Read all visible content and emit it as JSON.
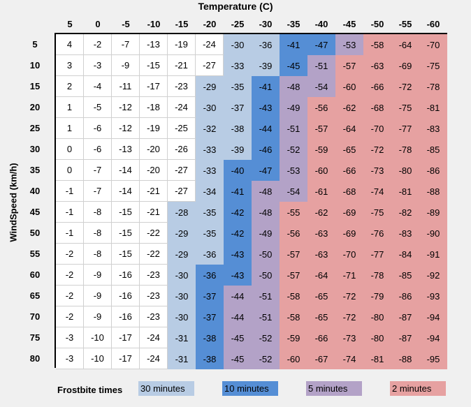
{
  "chart_data": {
    "type": "table",
    "title": "Temperature (C)",
    "ylabel": "WindSpeed (km/h)",
    "temperatures": [
      "5",
      "0",
      "-5",
      "-10",
      "-15",
      "-20",
      "-25",
      "-30",
      "-35",
      "-40",
      "-45",
      "-50",
      "-55",
      "-60"
    ],
    "wind_speeds": [
      "5",
      "10",
      "15",
      "20",
      "25",
      "30",
      "35",
      "40",
      "45",
      "50",
      "55",
      "60",
      "65",
      "70",
      "75",
      "80"
    ],
    "values": [
      [
        4,
        -2,
        -7,
        -13,
        -19,
        -24,
        -30,
        -36,
        -41,
        -47,
        -53,
        -58,
        -64,
        -70
      ],
      [
        3,
        -3,
        -9,
        -15,
        -21,
        -27,
        -33,
        -39,
        -45,
        -51,
        -57,
        -63,
        -69,
        -75
      ],
      [
        2,
        -4,
        -11,
        -17,
        -23,
        -29,
        -35,
        -41,
        -48,
        -54,
        -60,
        -66,
        -72,
        -78
      ],
      [
        1,
        -5,
        -12,
        -18,
        -24,
        -30,
        -37,
        -43,
        -49,
        -56,
        -62,
        -68,
        -75,
        -81
      ],
      [
        1,
        -6,
        -12,
        -19,
        -25,
        -32,
        -38,
        -44,
        -51,
        -57,
        -64,
        -70,
        -77,
        -83
      ],
      [
        0,
        -6,
        -13,
        -20,
        -26,
        -33,
        -39,
        -46,
        -52,
        -59,
        -65,
        -72,
        -78,
        -85
      ],
      [
        0,
        -7,
        -14,
        -20,
        -27,
        -33,
        -40,
        -47,
        -53,
        -60,
        -66,
        -73,
        -80,
        -86
      ],
      [
        -1,
        -7,
        -14,
        -21,
        -27,
        -34,
        -41,
        -48,
        -54,
        -61,
        -68,
        -74,
        -81,
        -88
      ],
      [
        -1,
        -8,
        -15,
        -21,
        -28,
        -35,
        -42,
        -48,
        -55,
        -62,
        -69,
        -75,
        -82,
        -89
      ],
      [
        -1,
        -8,
        -15,
        -22,
        -29,
        -35,
        -42,
        -49,
        -56,
        -63,
        -69,
        -76,
        -83,
        -90
      ],
      [
        -2,
        -8,
        -15,
        -22,
        -29,
        -36,
        -43,
        -50,
        -57,
        -63,
        -70,
        -77,
        -84,
        -91
      ],
      [
        -2,
        -9,
        -16,
        -23,
        -30,
        -36,
        -43,
        -50,
        -57,
        -64,
        -71,
        -78,
        -85,
        -92
      ],
      [
        -2,
        -9,
        -16,
        -23,
        -30,
        -37,
        -44,
        -51,
        -58,
        -65,
        -72,
        -79,
        -86,
        -93
      ],
      [
        -2,
        -9,
        -16,
        -23,
        -30,
        -37,
        -44,
        -51,
        -58,
        -65,
        -72,
        -80,
        -87,
        -94
      ],
      [
        -3,
        -10,
        -17,
        -24,
        -31,
        -38,
        -45,
        -52,
        -59,
        -66,
        -73,
        -80,
        -87,
        -94
      ],
      [
        -3,
        -10,
        -17,
        -24,
        -31,
        -38,
        -45,
        -52,
        -60,
        -67,
        -74,
        -81,
        -88,
        -95
      ]
    ],
    "frostbite_zones": [
      [
        0,
        0,
        0,
        0,
        0,
        0,
        1,
        1,
        2,
        2,
        3,
        4,
        4,
        4
      ],
      [
        0,
        0,
        0,
        0,
        0,
        0,
        1,
        1,
        2,
        3,
        4,
        4,
        4,
        4
      ],
      [
        0,
        0,
        0,
        0,
        0,
        1,
        1,
        2,
        3,
        3,
        4,
        4,
        4,
        4
      ],
      [
        0,
        0,
        0,
        0,
        0,
        1,
        1,
        2,
        3,
        4,
        4,
        4,
        4,
        4
      ],
      [
        0,
        0,
        0,
        0,
        0,
        1,
        1,
        2,
        3,
        4,
        4,
        4,
        4,
        4
      ],
      [
        0,
        0,
        0,
        0,
        0,
        1,
        1,
        2,
        3,
        4,
        4,
        4,
        4,
        4
      ],
      [
        0,
        0,
        0,
        0,
        0,
        1,
        2,
        2,
        3,
        4,
        4,
        4,
        4,
        4
      ],
      [
        0,
        0,
        0,
        0,
        0,
        1,
        2,
        3,
        3,
        4,
        4,
        4,
        4,
        4
      ],
      [
        0,
        0,
        0,
        0,
        1,
        1,
        2,
        3,
        4,
        4,
        4,
        4,
        4,
        4
      ],
      [
        0,
        0,
        0,
        0,
        1,
        1,
        2,
        3,
        4,
        4,
        4,
        4,
        4,
        4
      ],
      [
        0,
        0,
        0,
        0,
        1,
        1,
        2,
        3,
        4,
        4,
        4,
        4,
        4,
        4
      ],
      [
        0,
        0,
        0,
        0,
        1,
        2,
        2,
        3,
        4,
        4,
        4,
        4,
        4,
        4
      ],
      [
        0,
        0,
        0,
        0,
        1,
        2,
        3,
        3,
        4,
        4,
        4,
        4,
        4,
        4
      ],
      [
        0,
        0,
        0,
        0,
        1,
        2,
        3,
        3,
        4,
        4,
        4,
        4,
        4,
        4
      ],
      [
        0,
        0,
        0,
        0,
        1,
        2,
        3,
        3,
        4,
        4,
        4,
        4,
        4,
        4
      ],
      [
        0,
        0,
        0,
        0,
        1,
        2,
        3,
        3,
        4,
        4,
        4,
        4,
        4,
        4
      ]
    ],
    "zone_colors": [
      "#ffffff",
      "#b8cce4",
      "#558ed5",
      "#b3a2c7",
      "#e6a1a1"
    ],
    "legend": {
      "label": "Frostbite times",
      "items": [
        {
          "label": "30 minutes",
          "color": "#b8cce4"
        },
        {
          "label": "10 minutes",
          "color": "#558ed5"
        },
        {
          "label": "5 minutes",
          "color": "#b3a2c7"
        },
        {
          "label": "2 minutes",
          "color": "#e6a1a1"
        }
      ]
    }
  }
}
